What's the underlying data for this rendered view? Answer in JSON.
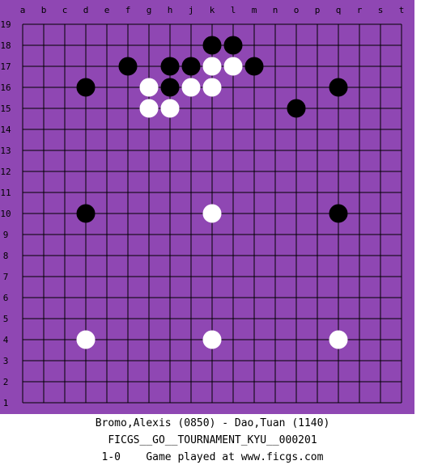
{
  "colors": {
    "board": "#8f47b3",
    "grid": "#000000",
    "label": "#000000",
    "black_stone": "#000000",
    "white_stone": "#ffffff",
    "background": "#ffffff"
  },
  "board": {
    "size": 19,
    "columns": [
      "a",
      "b",
      "c",
      "d",
      "e",
      "f",
      "g",
      "h",
      "j",
      "k",
      "l",
      "m",
      "n",
      "o",
      "p",
      "q",
      "r",
      "s",
      "t"
    ],
    "rows": [
      "19",
      "18",
      "17",
      "16",
      "15",
      "14",
      "13",
      "12",
      "11",
      "10",
      "9",
      "8",
      "7",
      "6",
      "5",
      "4",
      "3",
      "2",
      "1"
    ],
    "stones": [
      {
        "color": "black",
        "col": "k",
        "row": 18
      },
      {
        "color": "black",
        "col": "l",
        "row": 18
      },
      {
        "color": "black",
        "col": "f",
        "row": 17
      },
      {
        "color": "black",
        "col": "h",
        "row": 17
      },
      {
        "color": "black",
        "col": "j",
        "row": 17
      },
      {
        "color": "white",
        "col": "k",
        "row": 17
      },
      {
        "color": "white",
        "col": "l",
        "row": 17
      },
      {
        "color": "black",
        "col": "m",
        "row": 17
      },
      {
        "color": "black",
        "col": "d",
        "row": 16
      },
      {
        "color": "white",
        "col": "g",
        "row": 16
      },
      {
        "color": "black",
        "col": "h",
        "row": 16
      },
      {
        "color": "white",
        "col": "j",
        "row": 16
      },
      {
        "color": "white",
        "col": "k",
        "row": 16
      },
      {
        "color": "black",
        "col": "q",
        "row": 16
      },
      {
        "color": "white",
        "col": "g",
        "row": 15
      },
      {
        "color": "white",
        "col": "h",
        "row": 15
      },
      {
        "color": "black",
        "col": "o",
        "row": 15
      },
      {
        "color": "black",
        "col": "d",
        "row": 10
      },
      {
        "color": "white",
        "col": "k",
        "row": 10
      },
      {
        "color": "black",
        "col": "q",
        "row": 10
      },
      {
        "color": "white",
        "col": "d",
        "row": 4
      },
      {
        "color": "white",
        "col": "k",
        "row": 4
      },
      {
        "color": "white",
        "col": "q",
        "row": 4
      }
    ]
  },
  "game": {
    "players_line": "Bromo,Alexis (0850) - Dao,Tuan (1140)",
    "event_line": "FICGS__GO__TOURNAMENT_KYU__000201",
    "result_line": "1-0    Game played at www.ficgs.com"
  }
}
